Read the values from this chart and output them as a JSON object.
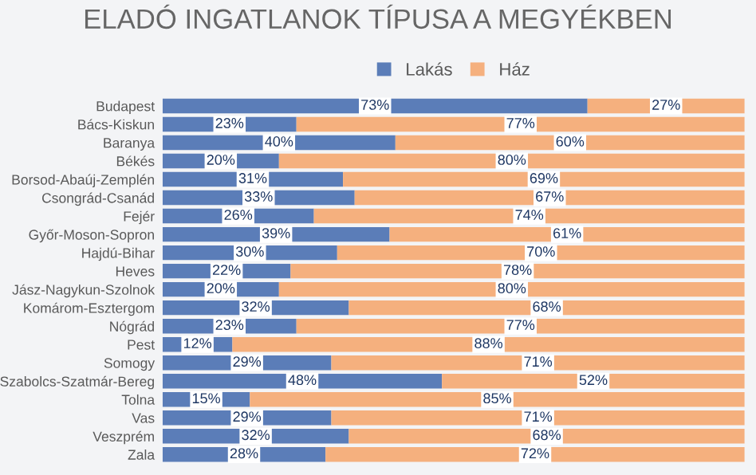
{
  "chart_data": {
    "type": "bar",
    "orientation": "horizontal",
    "stacked": true,
    "title": "ELADÓ INGATLANOK TÍPUSA A MEGYÉKBEN",
    "categories": [
      "Budapest",
      "Bács-Kiskun",
      "Baranya",
      "Békés",
      "Borsod-Abaúj-Zemplén",
      "Csongrád-Csanád",
      "Fejér",
      "Győr-Moson-Sopron",
      "Hajdú-Bihar",
      "Heves",
      "Jász-Nagykun-Szolnok",
      "Komárom-Esztergom",
      "Nógrád",
      "Pest",
      "Somogy",
      "Szabolcs-Szatmár-Bereg",
      "Tolna",
      "Vas",
      "Veszprém",
      "Zala"
    ],
    "series": [
      {
        "name": "Lakás",
        "color": "#5b7db8",
        "values": [
          73,
          23,
          40,
          20,
          31,
          33,
          26,
          39,
          30,
          22,
          20,
          32,
          23,
          12,
          29,
          48,
          15,
          29,
          32,
          28
        ],
        "value_labels": [
          "73%",
          "23%",
          "40%",
          "20%",
          "31%",
          "33%",
          "26%",
          "39%",
          "30%",
          "22%",
          "20%",
          "32%",
          "23%",
          "12%",
          "29%",
          "48%",
          "15%",
          "29%",
          "32%",
          "28%"
        ]
      },
      {
        "name": "Ház",
        "color": "#f5b07e",
        "values": [
          27,
          77,
          60,
          80,
          69,
          67,
          74,
          61,
          70,
          78,
          80,
          68,
          77,
          88,
          71,
          52,
          85,
          71,
          68,
          72
        ],
        "value_labels": [
          "27%",
          "77%",
          "60%",
          "80%",
          "69%",
          "67%",
          "74%",
          "61%",
          "70%",
          "78%",
          "80%",
          "68%",
          "77%",
          "88%",
          "71%",
          "52%",
          "85%",
          "71%",
          "68%",
          "72%"
        ]
      }
    ],
    "legend": "top",
    "grid": false,
    "tick_labels": "y"
  }
}
